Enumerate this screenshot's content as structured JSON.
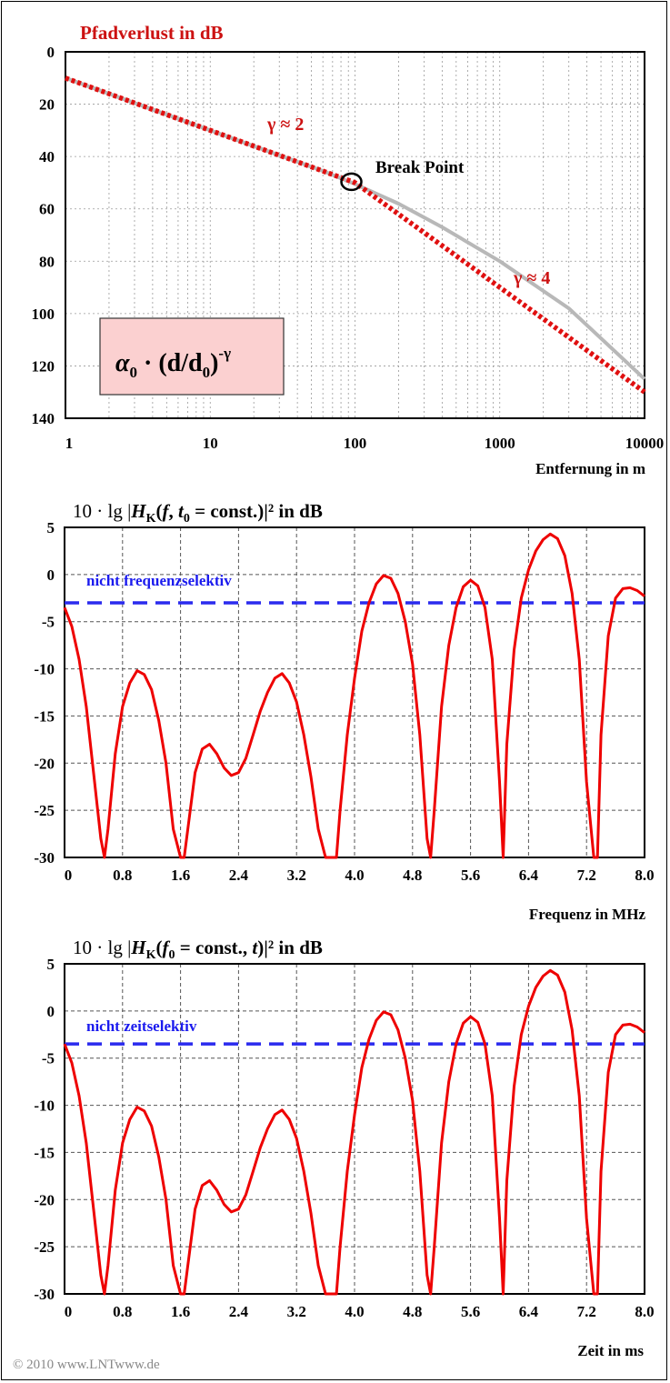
{
  "copyright": "© 2010 www.LNTwww.de",
  "chart_data": [
    {
      "type": "line",
      "title": "Pfadverlust in dB",
      "xlabel": "Entfernung in m",
      "ylabel": "",
      "x_scale": "log",
      "xlim": [
        1,
        10000
      ],
      "ylim": [
        0,
        140
      ],
      "y_inverted": true,
      "x_ticks": [
        "1",
        "10",
        "100",
        "1000",
        "10000"
      ],
      "y_ticks": [
        "0",
        "20",
        "40",
        "60",
        "80",
        "100",
        "120",
        "140"
      ],
      "grid": true,
      "annotations": {
        "gamma2": "γ ≈ 2",
        "gamma4": "γ ≈ 4",
        "breakpoint": "Break Point",
        "formula_alpha": "α",
        "formula_sub0": "0",
        "formula_mid": " · (d/d",
        "formula_sub1": "0",
        "formula_close": ")",
        "formula_exp": "-γ"
      },
      "series": [
        {
          "name": "",
          "color": "#dd1111",
          "style": "dotted",
          "x": [
            1,
            100,
            10000
          ],
          "y": [
            10,
            50,
            130
          ]
        },
        {
          "name": "",
          "color": "#b0b0b0",
          "style": "solid",
          "x": [
            1,
            10,
            30,
            60,
            100,
            200,
            400,
            1000,
            3000,
            10000
          ],
          "y": [
            10,
            30,
            39.5,
            45.5,
            50.5,
            58,
            67,
            80,
            98,
            125
          ]
        }
      ],
      "breakpoint": {
        "x": 100,
        "y": 50
      }
    },
    {
      "type": "line",
      "title": "10 · lg |H_K(f, t_0 = const.)|² in dB",
      "title_parts": [
        "10 · lg |",
        "H",
        "K",
        "(",
        "f",
        ", ",
        "t",
        "0",
        " = const.)|² in dB"
      ],
      "xlabel": "Frequenz in MHz",
      "ylabel": "",
      "xlim": [
        0,
        8
      ],
      "ylim": [
        -30,
        5
      ],
      "x_ticks": [
        "0",
        "0.8",
        "1.6",
        "2.4",
        "3.2",
        "4.0",
        "4.8",
        "5.6",
        "6.4",
        "7.2",
        "8.0"
      ],
      "y_ticks": [
        "5",
        "0",
        "-5",
        "-10",
        "-15",
        "-20",
        "-25",
        "-30"
      ],
      "grid": true,
      "reference_line": {
        "label": "nicht  frequenzselektiv",
        "y": -3,
        "color": "#2222ee"
      },
      "series": [
        {
          "name": "",
          "color": "#ee0000",
          "x": [
            0,
            0.1,
            0.2,
            0.3,
            0.4,
            0.5,
            0.55,
            0.6,
            0.7,
            0.8,
            0.9,
            1.0,
            1.1,
            1.2,
            1.3,
            1.4,
            1.5,
            1.6,
            1.65,
            1.7,
            1.8,
            1.9,
            2.0,
            2.1,
            2.2,
            2.3,
            2.4,
            2.5,
            2.6,
            2.7,
            2.8,
            2.9,
            3.0,
            3.1,
            3.2,
            3.3,
            3.4,
            3.5,
            3.6,
            3.7,
            3.75,
            3.8,
            3.9,
            4.0,
            4.1,
            4.2,
            4.3,
            4.4,
            4.5,
            4.6,
            4.7,
            4.8,
            4.9,
            5.0,
            5.05,
            5.1,
            5.2,
            5.3,
            5.4,
            5.5,
            5.6,
            5.7,
            5.8,
            5.9,
            6.0,
            6.05,
            6.1,
            6.2,
            6.3,
            6.4,
            6.5,
            6.6,
            6.7,
            6.8,
            6.9,
            7.0,
            7.1,
            7.2,
            7.3,
            7.35,
            7.4,
            7.5,
            7.6,
            7.7,
            7.8,
            7.9,
            8.0
          ],
          "y": [
            -3.5,
            -5.5,
            -9,
            -14,
            -21,
            -28,
            -30,
            -27,
            -19,
            -14,
            -11.5,
            -10.2,
            -10.6,
            -12.2,
            -15.5,
            -20,
            -27,
            -30,
            -30,
            -27,
            -21,
            -18.5,
            -18,
            -19,
            -20.5,
            -21.3,
            -21,
            -19.5,
            -17,
            -14.5,
            -12.5,
            -11,
            -10.5,
            -11.5,
            -13.5,
            -17,
            -21.5,
            -27,
            -30,
            -30,
            -30,
            -25,
            -17,
            -11,
            -6,
            -3,
            -1,
            -0.1,
            -0.4,
            -2,
            -5,
            -9.5,
            -17,
            -28,
            -30,
            -25,
            -14,
            -7.5,
            -3.5,
            -1.3,
            -0.6,
            -1.2,
            -3.5,
            -9,
            -22,
            -30,
            -18,
            -8,
            -2.5,
            0.5,
            2.5,
            3.7,
            4.3,
            3.8,
            2,
            -2,
            -9,
            -22,
            -30,
            -30,
            -17,
            -6.5,
            -2.5,
            -1.5,
            -1.4,
            -1.7,
            -2.3
          ]
        }
      ]
    },
    {
      "type": "line",
      "title": "10 · lg |H_K(f_0 = const., t)|² in dB",
      "title_parts": [
        "10 · lg |",
        "H",
        "K",
        "(",
        "f",
        "0",
        " = const., ",
        "t",
        ")|² in dB"
      ],
      "xlabel": "Zeit in ms",
      "ylabel": "",
      "xlim": [
        0,
        8
      ],
      "ylim": [
        -30,
        5
      ],
      "x_ticks": [
        "0",
        "0.8",
        "1.6",
        "2.4",
        "3.2",
        "4.0",
        "4.8",
        "5.6",
        "6.4",
        "7.2",
        "8.0"
      ],
      "y_ticks": [
        "5",
        "0",
        "-5",
        "-10",
        "-15",
        "-20",
        "-25",
        "-30"
      ],
      "grid": true,
      "reference_line": {
        "label": "nicht zeitselektiv",
        "y": -3.5,
        "color": "#2222ee"
      },
      "series": [
        {
          "name": "",
          "color": "#ee0000",
          "x": [
            0,
            0.1,
            0.2,
            0.3,
            0.4,
            0.5,
            0.55,
            0.6,
            0.7,
            0.8,
            0.9,
            1.0,
            1.1,
            1.2,
            1.3,
            1.4,
            1.5,
            1.6,
            1.65,
            1.7,
            1.8,
            1.9,
            2.0,
            2.1,
            2.2,
            2.3,
            2.4,
            2.5,
            2.6,
            2.7,
            2.8,
            2.9,
            3.0,
            3.1,
            3.2,
            3.3,
            3.4,
            3.5,
            3.6,
            3.7,
            3.75,
            3.8,
            3.9,
            4.0,
            4.1,
            4.2,
            4.3,
            4.4,
            4.5,
            4.6,
            4.7,
            4.8,
            4.9,
            5.0,
            5.05,
            5.1,
            5.2,
            5.3,
            5.4,
            5.5,
            5.6,
            5.7,
            5.8,
            5.9,
            6.0,
            6.05,
            6.1,
            6.2,
            6.3,
            6.4,
            6.5,
            6.6,
            6.7,
            6.8,
            6.9,
            7.0,
            7.1,
            7.2,
            7.3,
            7.35,
            7.4,
            7.5,
            7.6,
            7.7,
            7.8,
            7.9,
            8.0
          ],
          "y": [
            -3.5,
            -5.5,
            -9,
            -14,
            -21,
            -28,
            -30,
            -27,
            -19,
            -14,
            -11.5,
            -10.2,
            -10.6,
            -12.2,
            -15.5,
            -20,
            -27,
            -30,
            -30,
            -27,
            -21,
            -18.5,
            -18,
            -19,
            -20.5,
            -21.3,
            -21,
            -19.5,
            -17,
            -14.5,
            -12.5,
            -11,
            -10.5,
            -11.5,
            -13.5,
            -17,
            -21.5,
            -27,
            -30,
            -30,
            -30,
            -25,
            -17,
            -11,
            -6,
            -3,
            -1,
            -0.1,
            -0.4,
            -2,
            -5,
            -9.5,
            -17,
            -28,
            -30,
            -25,
            -14,
            -7.5,
            -3.5,
            -1.3,
            -0.6,
            -1.2,
            -3.5,
            -9,
            -22,
            -30,
            -18,
            -8,
            -2.5,
            0.5,
            2.5,
            3.7,
            4.3,
            3.8,
            2,
            -2,
            -9,
            -22,
            -30,
            -30,
            -17,
            -6.5,
            -2.5,
            -1.5,
            -1.4,
            -1.7,
            -2.3
          ]
        }
      ]
    }
  ]
}
